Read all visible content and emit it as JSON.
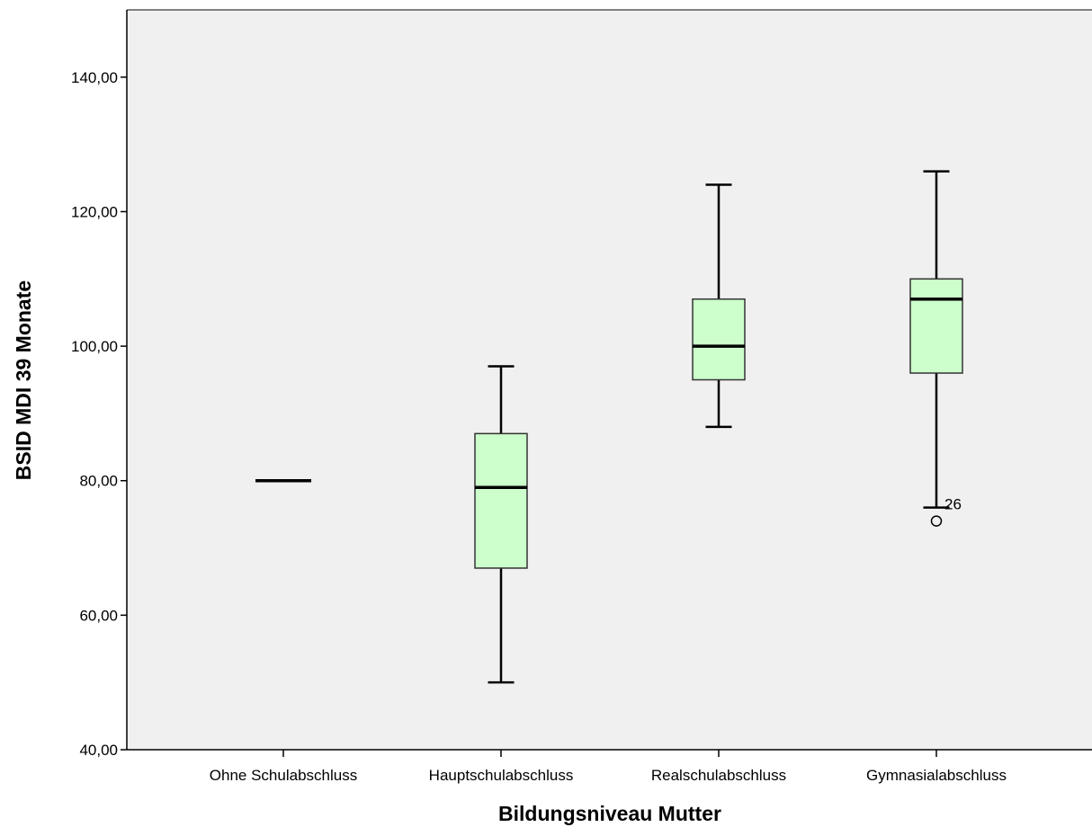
{
  "chart_data": {
    "type": "boxplot",
    "xlabel": "Bildungsniveau Mutter",
    "ylabel": "BSID MDI 39 Monate",
    "ylim": [
      40,
      150
    ],
    "y_ticks": [
      {
        "value": 40,
        "label": "40,00"
      },
      {
        "value": 60,
        "label": "60,00"
      },
      {
        "value": 80,
        "label": "80,00"
      },
      {
        "value": 100,
        "label": "100,00"
      },
      {
        "value": 120,
        "label": "120,00"
      },
      {
        "value": 140,
        "label": "140,00"
      }
    ],
    "categories": [
      "Ohne Schulabschluss",
      "Hauptschulabschluss",
      "Realschulabschluss",
      "Gymnasialabschluss"
    ],
    "boxes": [
      {
        "category": "Ohne Schulabschluss",
        "min": 80,
        "q1": 80,
        "median": 80,
        "q3": 80,
        "max": 80,
        "outliers": []
      },
      {
        "category": "Hauptschulabschluss",
        "min": 50,
        "q1": 67,
        "median": 79,
        "q3": 87,
        "max": 97,
        "outliers": []
      },
      {
        "category": "Realschulabschluss",
        "min": 88,
        "q1": 95,
        "median": 100,
        "q3": 107,
        "max": 124,
        "outliers": []
      },
      {
        "category": "Gymnasialabschluss",
        "min": 76,
        "q1": 96,
        "median": 107,
        "q3": 110,
        "max": 126,
        "outliers": [
          {
            "value": 74,
            "label": "26"
          }
        ]
      }
    ],
    "colors": {
      "box_fill": "#ccffcc",
      "plot_background": "#f0f0f0",
      "line": "#000000",
      "frame": "#808080"
    },
    "grid": false,
    "legend": "none"
  }
}
